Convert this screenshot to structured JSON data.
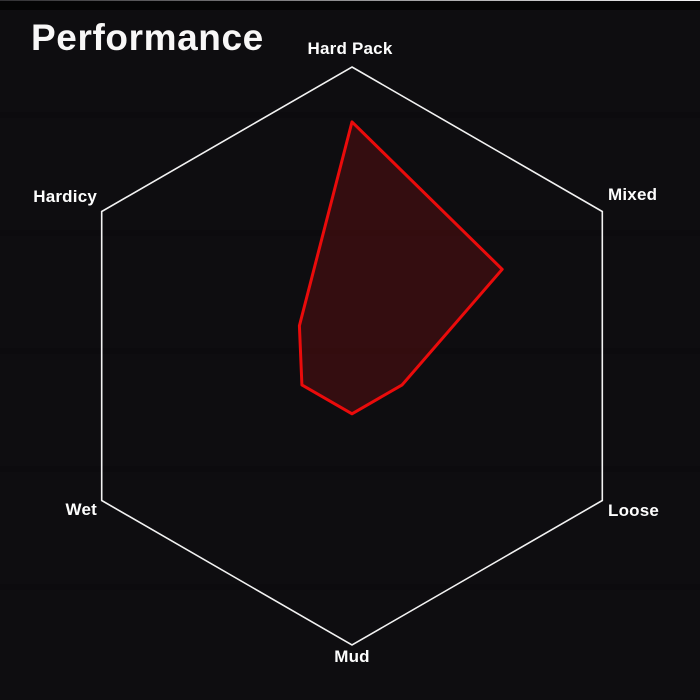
{
  "window": {
    "background": "#0e0d10",
    "top_bar_color": "#050505",
    "top_hairline_color": "#ffffff"
  },
  "header": {
    "title": "Performance"
  },
  "chart_data": {
    "type": "radar",
    "title": "Performance",
    "categories": [
      "Hard Pack",
      "Mixed",
      "Loose",
      "Mud",
      "Wet",
      "Hardicy"
    ],
    "values": [
      0.81,
      0.6,
      0.2,
      0.2,
      0.2,
      0.21
    ],
    "value_range": [
      0,
      1
    ],
    "start_axis": "top",
    "direction": "clockwise",
    "gridlines": false,
    "spokes": false,
    "legend": "none",
    "outline_color": "#f2f2f2",
    "series_stroke_color": "#ea0b0b",
    "series_fill_color": "rgba(255,16,16,0.16)",
    "label_color": "#fdfdfd"
  }
}
